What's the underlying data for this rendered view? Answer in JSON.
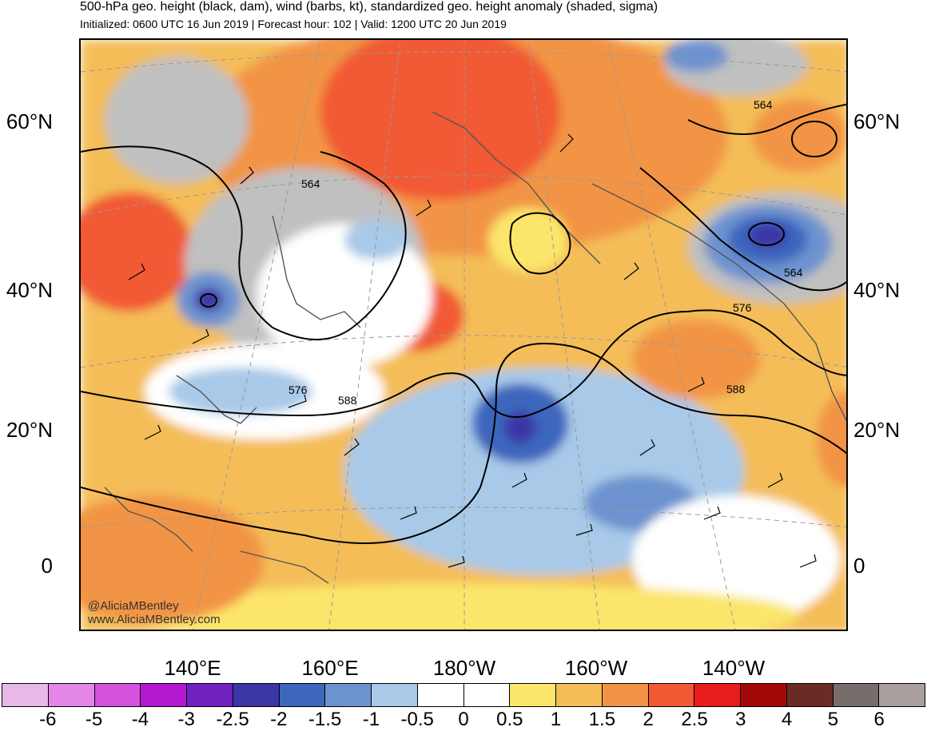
{
  "header": {
    "title": "500-hPa geo. height (black, dam), wind (barbs, kt), standardized geo. height anomaly (shaded, sigma)",
    "subtitle": "Initialized: 0600 UTC 16 Jun 2019 | Forecast hour: 102 | Valid: 1200 UTC 20 Jun 2019"
  },
  "map": {
    "lat_labels": [
      "60°N",
      "40°N",
      "20°N",
      "0"
    ],
    "lon_labels": [
      "140°E",
      "160°E",
      "180°W",
      "160°W",
      "140°W"
    ],
    "contour_labels": [
      "564",
      "564",
      "564",
      "576",
      "576",
      "588",
      "588"
    ],
    "credit_handle": "@AliciaMBentley",
    "credit_site": "www.AliciaMBentley.com",
    "icons": [
      "wind-barb-icon",
      "coastline-icon",
      "contour-line-icon"
    ]
  },
  "colorbar": {
    "labels": [
      "-6",
      "-5",
      "-4",
      "-3",
      "-2.5",
      "-2",
      "-1.5",
      "-1",
      "-0.5",
      "0",
      "0.5",
      "1",
      "1.5",
      "2",
      "2.5",
      "3",
      "4",
      "5",
      "6"
    ],
    "colors": [
      "#e7b8e8",
      "#e386e6",
      "#d553dc",
      "#b118d0",
      "#6f22c0",
      "#3c35a6",
      "#3d66bd",
      "#6d93cf",
      "#a8c9e8",
      "#ffffff",
      "#ffffff",
      "#fbe56b",
      "#f4bd58",
      "#f29445",
      "#f15a35",
      "#e81c1c",
      "#a10808",
      "#6b2b25",
      "#776e6b",
      "#a9a09e"
    ]
  }
}
